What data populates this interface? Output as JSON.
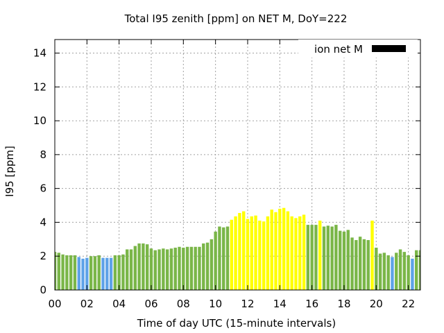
{
  "chart_data": {
    "type": "bar",
    "title": "Total I95 zenith [ppm] on NET M, DoY=222",
    "xlabel": "Time of day UTC (15-minute intervals)",
    "ylabel": "I95 [ppm]",
    "ylim": [
      0,
      14.8
    ],
    "yticks": [
      0,
      2,
      4,
      6,
      8,
      10,
      12,
      14
    ],
    "xlim": [
      0,
      22.75
    ],
    "xtick_values": [
      0,
      2,
      4,
      6,
      8,
      10,
      12,
      14,
      16,
      18,
      20,
      22
    ],
    "xtick_labels": [
      "00",
      "02",
      "04",
      "06",
      "08",
      "10",
      "12",
      "14",
      "16",
      "18",
      "20",
      "22"
    ],
    "grid": true,
    "legend": {
      "label": "ion net M",
      "color": "#000000",
      "position": "top-right"
    },
    "colors": {
      "green": "#7ab648",
      "blue": "#5ea2e8",
      "yellow": "#ffff00"
    },
    "bar_width_hours": 0.19,
    "x": [
      0,
      0.25,
      0.5,
      0.75,
      1,
      1.25,
      1.5,
      1.75,
      2,
      2.25,
      2.5,
      2.75,
      3,
      3.25,
      3.5,
      3.75,
      4,
      4.25,
      4.5,
      4.75,
      5,
      5.25,
      5.5,
      5.75,
      6,
      6.25,
      6.5,
      6.75,
      7,
      7.25,
      7.5,
      7.75,
      8,
      8.25,
      8.5,
      8.75,
      9,
      9.25,
      9.5,
      9.75,
      10,
      10.25,
      10.5,
      10.75,
      11,
      11.25,
      11.5,
      11.75,
      12,
      12.25,
      12.5,
      12.75,
      13,
      13.25,
      13.5,
      13.75,
      14,
      14.25,
      14.5,
      14.75,
      15,
      15.25,
      15.5,
      15.75,
      16,
      16.25,
      16.5,
      16.75,
      17,
      17.25,
      17.5,
      17.75,
      18,
      18.25,
      18.5,
      18.75,
      19,
      19.25,
      19.5,
      19.75,
      20,
      20.25,
      20.5,
      20.75,
      21,
      21.25,
      21.5,
      21.75,
      22,
      22.25,
      22.5,
      22.75
    ],
    "values": [
      2.25,
      2.2,
      2.1,
      2.05,
      2.05,
      2.05,
      1.95,
      1.85,
      1.9,
      2.0,
      2.0,
      2.05,
      1.9,
      1.9,
      1.9,
      2.05,
      2.05,
      2.1,
      2.4,
      2.4,
      2.6,
      2.75,
      2.75,
      2.7,
      2.45,
      2.35,
      2.4,
      2.45,
      2.4,
      2.45,
      2.5,
      2.55,
      2.5,
      2.55,
      2.55,
      2.55,
      2.55,
      2.75,
      2.8,
      3.0,
      3.45,
      3.75,
      3.7,
      3.75,
      4.15,
      4.35,
      4.55,
      4.65,
      4.2,
      4.35,
      4.4,
      4.1,
      4.05,
      4.35,
      4.75,
      4.6,
      4.8,
      4.85,
      4.65,
      4.35,
      4.25,
      4.35,
      4.45,
      3.85,
      3.85,
      3.85,
      4.1,
      3.75,
      3.8,
      3.75,
      3.85,
      3.5,
      3.45,
      3.55,
      3.1,
      2.95,
      3.15,
      3.0,
      2.95,
      4.1,
      2.5,
      2.15,
      2.2,
      2.05,
      1.95,
      2.2,
      2.4,
      2.25,
      2.05,
      1.85,
      2.35,
      2.35
    ],
    "bar_colors": [
      "green",
      "green",
      "green",
      "green",
      "green",
      "green",
      "blue",
      "blue",
      "blue",
      "green",
      "green",
      "green",
      "blue",
      "blue",
      "blue",
      "green",
      "green",
      "green",
      "green",
      "green",
      "green",
      "green",
      "green",
      "green",
      "green",
      "green",
      "green",
      "green",
      "green",
      "green",
      "green",
      "green",
      "green",
      "green",
      "green",
      "green",
      "green",
      "green",
      "green",
      "green",
      "green",
      "green",
      "green",
      "green",
      "yellow",
      "yellow",
      "yellow",
      "yellow",
      "yellow",
      "yellow",
      "yellow",
      "yellow",
      "yellow",
      "yellow",
      "yellow",
      "yellow",
      "yellow",
      "yellow",
      "yellow",
      "yellow",
      "yellow",
      "yellow",
      "yellow",
      "green",
      "green",
      "green",
      "yellow",
      "green",
      "green",
      "green",
      "green",
      "green",
      "green",
      "green",
      "green",
      "green",
      "green",
      "green",
      "green",
      "yellow",
      "green",
      "green",
      "green",
      "green",
      "blue",
      "green",
      "green",
      "green",
      "green",
      "blue",
      "green",
      "green"
    ]
  }
}
